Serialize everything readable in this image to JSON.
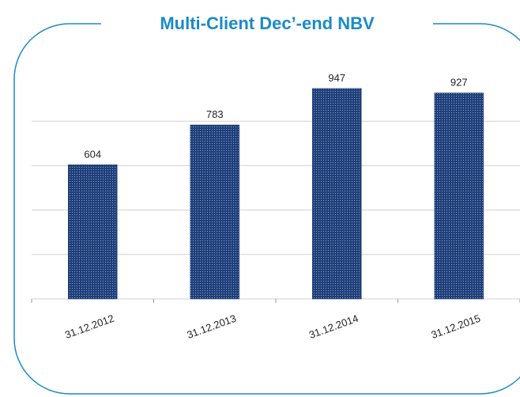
{
  "chart_data": {
    "type": "bar",
    "title": "Multi-Client Dec’-end NBV",
    "categories": [
      "31.12.2012",
      "31.12.2013",
      "31.12.2014",
      "31.12.2015"
    ],
    "values": [
      604,
      783,
      947,
      927
    ],
    "color": "#1f3f7a",
    "ylim": [
      0,
      1000
    ],
    "yticks": [
      0,
      200,
      400,
      600,
      800
    ],
    "grid": true
  }
}
